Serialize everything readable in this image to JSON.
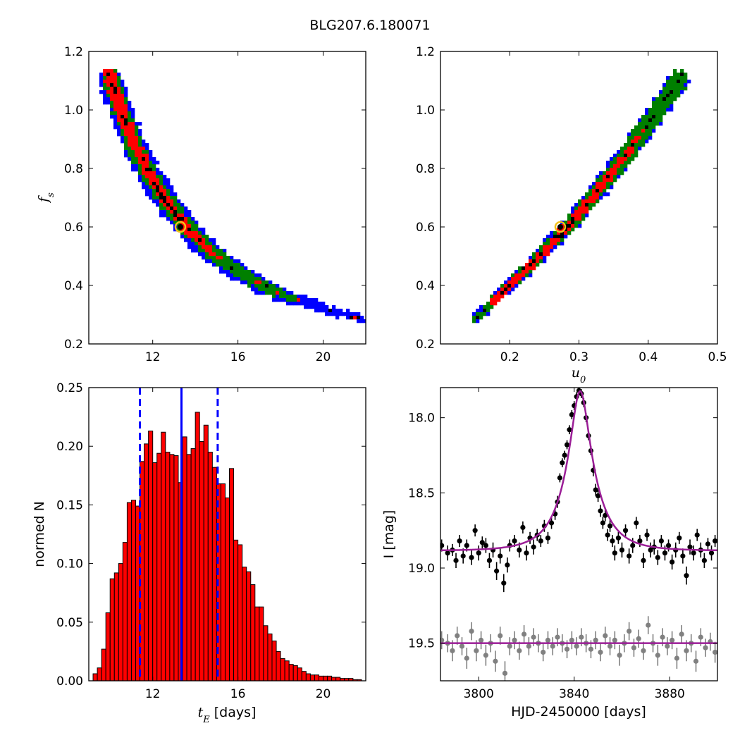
{
  "figure": {
    "title": "BLG207.6.180071",
    "colors": {
      "blue": "#0000ff",
      "green": "#007f00",
      "red": "#ff0000",
      "black": "#000000",
      "marker_edge": "#f2c11b",
      "model": "#9b1e97",
      "gray": "#808080"
    }
  },
  "chart_data": [
    {
      "id": "tE-fs",
      "type": "heatmap",
      "title": "",
      "xlabel": "",
      "ylabel": "f_s",
      "xlim": [
        9.0,
        22.0
      ],
      "ylim": [
        0.2,
        1.2
      ],
      "xticks": [
        12,
        16,
        20
      ],
      "yticks": [
        0.2,
        0.4,
        0.6,
        0.8,
        1.0,
        1.2
      ],
      "ytick_labels": [
        "0.2",
        "0.4",
        "0.6",
        "0.8",
        "1.0",
        "1.2"
      ],
      "levels": [
        "black",
        "red",
        "green",
        "blue"
      ],
      "ridge": [
        [
          9.9,
          1.13
        ],
        [
          10.5,
          1.0
        ],
        [
          11.2,
          0.87
        ],
        [
          12.0,
          0.76
        ],
        [
          13.0,
          0.65
        ],
        [
          14.0,
          0.565
        ],
        [
          15.0,
          0.5
        ],
        [
          16.0,
          0.445
        ],
        [
          17.0,
          0.405
        ],
        [
          18.0,
          0.37
        ],
        [
          19.0,
          0.345
        ],
        [
          20.0,
          0.32
        ],
        [
          21.0,
          0.3
        ],
        [
          21.9,
          0.285
        ]
      ],
      "ridge_half_width_fs": {
        "blue": [
          [
            9.9,
            0.045
          ],
          [
            16.0,
            0.04
          ],
          [
            20.0,
            0.022
          ],
          [
            21.9,
            0.012
          ]
        ],
        "green": [
          [
            9.9,
            0.035
          ],
          [
            16.0,
            0.03
          ],
          [
            19.0,
            0.018
          ],
          [
            20.0,
            0.012
          ]
        ],
        "red": [
          [
            10.2,
            0.025
          ],
          [
            15.0,
            0.02
          ],
          [
            16.8,
            0.014
          ]
        ],
        "black": [
          [
            12.6,
            0.008
          ],
          [
            14.6,
            0.008
          ]
        ]
      },
      "best_fit": {
        "tE": 13.3,
        "fs": 0.6
      }
    },
    {
      "id": "u0-fs",
      "type": "heatmap",
      "title": "",
      "xlabel": "u_0",
      "ylabel": "",
      "xlim": [
        0.1,
        0.5
      ],
      "ylim": [
        0.2,
        1.2
      ],
      "xticks": [
        0.2,
        0.3,
        0.4,
        0.5
      ],
      "xtick_labels": [
        "0.2",
        "0.3",
        "0.4",
        "0.5"
      ],
      "yticks": [
        0.2,
        0.4,
        0.6,
        0.8,
        1.0,
        1.2
      ],
      "ytick_labels": [
        "0.2",
        "0.4",
        "0.6",
        "0.8",
        "1.0",
        "1.2"
      ],
      "ridge": [
        [
          0.15,
          0.285
        ],
        [
          0.2,
          0.4
        ],
        [
          0.25,
          0.515
        ],
        [
          0.3,
          0.645
        ],
        [
          0.35,
          0.79
        ],
        [
          0.4,
          0.95
        ],
        [
          0.45,
          1.12
        ]
      ],
      "best_fit": {
        "u0": 0.273,
        "fs": 0.6
      }
    },
    {
      "id": "tE-hist",
      "type": "bar",
      "title": "",
      "xlabel": "t_E [days]",
      "ylabel": "normed N",
      "xlim": [
        9.0,
        22.0
      ],
      "ylim": [
        0.0,
        0.25
      ],
      "xticks": [
        12,
        16,
        20
      ],
      "yticks": [
        0.0,
        0.05,
        0.1,
        0.15,
        0.2,
        0.25
      ],
      "ytick_labels": [
        "0.00",
        "0.05",
        "0.10",
        "0.15",
        "0.20",
        "0.25"
      ],
      "bin_width": 0.2,
      "bin_start": 9.2,
      "values": [
        0.006,
        0.011,
        0.027,
        0.058,
        0.087,
        0.092,
        0.1,
        0.118,
        0.152,
        0.154,
        0.149,
        0.187,
        0.202,
        0.213,
        0.186,
        0.194,
        0.212,
        0.195,
        0.193,
        0.192,
        0.169,
        0.208,
        0.193,
        0.198,
        0.229,
        0.204,
        0.218,
        0.195,
        0.182,
        0.168,
        0.168,
        0.156,
        0.181,
        0.12,
        0.116,
        0.097,
        0.093,
        0.082,
        0.063,
        0.063,
        0.047,
        0.04,
        0.034,
        0.025,
        0.019,
        0.017,
        0.014,
        0.013,
        0.011,
        0.008,
        0.006,
        0.005,
        0.005,
        0.004,
        0.004,
        0.004,
        0.003,
        0.003,
        0.002,
        0.002,
        0.002,
        0.001,
        0.001
      ],
      "median": 13.35,
      "interval": [
        11.4,
        15.05
      ]
    },
    {
      "id": "lightcurve",
      "type": "scatter",
      "title": "",
      "xlabel": "HJD-2450000 [days]",
      "ylabel": "I [mag]",
      "xlim": [
        3784,
        3900
      ],
      "ylim": [
        19.75,
        17.8
      ],
      "xticks": [
        3800,
        3840,
        3880
      ],
      "yticks": [
        18.0,
        18.5,
        19.0,
        19.5
      ],
      "ytick_labels": [
        "18.0",
        "18.5",
        "19.0",
        "19.5"
      ],
      "model": {
        "t0": 3842.5,
        "u0": 0.273,
        "tE": 13.3,
        "fs": 0.6,
        "baseline": 18.885
      },
      "residual_baseline": 19.5,
      "data_points": [
        [
          3784.5,
          18.85,
          0.04
        ],
        [
          3787.0,
          18.9,
          0.05
        ],
        [
          3789.0,
          18.88,
          0.04
        ],
        [
          3790.5,
          18.95,
          0.05
        ],
        [
          3792.0,
          18.82,
          0.04
        ],
        [
          3793.5,
          18.92,
          0.05
        ],
        [
          3795.0,
          18.85,
          0.04
        ],
        [
          3797.0,
          18.93,
          0.05
        ],
        [
          3798.5,
          18.75,
          0.04
        ],
        [
          3800.0,
          18.9,
          0.05
        ],
        [
          3801.5,
          18.83,
          0.04
        ],
        [
          3803.0,
          18.85,
          0.05
        ],
        [
          3804.5,
          18.95,
          0.05
        ],
        [
          3806.0,
          18.88,
          0.05
        ],
        [
          3807.5,
          19.02,
          0.06
        ],
        [
          3809.0,
          18.92,
          0.05
        ],
        [
          3810.5,
          19.1,
          0.06
        ],
        [
          3812.0,
          18.98,
          0.05
        ],
        [
          3813.0,
          18.85,
          0.04
        ],
        [
          3815.0,
          18.82,
          0.04
        ],
        [
          3817.0,
          18.88,
          0.05
        ],
        [
          3818.5,
          18.73,
          0.04
        ],
        [
          3820.0,
          18.9,
          0.05
        ],
        [
          3821.5,
          18.8,
          0.04
        ],
        [
          3823.0,
          18.86,
          0.05
        ],
        [
          3824.5,
          18.78,
          0.04
        ],
        [
          3826.0,
          18.82,
          0.04
        ],
        [
          3827.5,
          18.72,
          0.04
        ],
        [
          3829.0,
          18.8,
          0.04
        ],
        [
          3830.5,
          18.7,
          0.04
        ],
        [
          3832.0,
          18.64,
          0.04
        ],
        [
          3833.0,
          18.56,
          0.04
        ],
        [
          3834.0,
          18.4,
          0.03
        ],
        [
          3835.0,
          18.3,
          0.03
        ],
        [
          3836.0,
          18.25,
          0.03
        ],
        [
          3837.0,
          18.18,
          0.03
        ],
        [
          3838.0,
          18.08,
          0.03
        ],
        [
          3839.0,
          17.98,
          0.03
        ],
        [
          3840.0,
          17.92,
          0.03
        ],
        [
          3841.0,
          17.86,
          0.03
        ],
        [
          3842.0,
          17.82,
          0.03
        ],
        [
          3843.0,
          17.84,
          0.03
        ],
        [
          3844.0,
          17.9,
          0.03
        ],
        [
          3845.0,
          18.0,
          0.03
        ],
        [
          3846.0,
          18.12,
          0.03
        ],
        [
          3847.0,
          18.22,
          0.03
        ],
        [
          3848.0,
          18.35,
          0.04
        ],
        [
          3849.0,
          18.48,
          0.04
        ],
        [
          3850.0,
          18.52,
          0.04
        ],
        [
          3851.0,
          18.62,
          0.04
        ],
        [
          3852.0,
          18.7,
          0.04
        ],
        [
          3853.0,
          18.65,
          0.04
        ],
        [
          3854.0,
          18.78,
          0.04
        ],
        [
          3855.0,
          18.72,
          0.04
        ],
        [
          3856.0,
          18.82,
          0.04
        ],
        [
          3857.0,
          18.9,
          0.05
        ],
        [
          3858.5,
          18.8,
          0.04
        ],
        [
          3860.0,
          18.88,
          0.05
        ],
        [
          3861.5,
          18.75,
          0.04
        ],
        [
          3863.0,
          18.92,
          0.05
        ],
        [
          3864.5,
          18.85,
          0.05
        ],
        [
          3866.0,
          18.7,
          0.04
        ],
        [
          3867.5,
          18.82,
          0.04
        ],
        [
          3869.0,
          18.95,
          0.05
        ],
        [
          3870.5,
          18.78,
          0.04
        ],
        [
          3872.0,
          18.88,
          0.05
        ],
        [
          3873.5,
          18.86,
          0.05
        ],
        [
          3875.0,
          18.93,
          0.05
        ],
        [
          3876.5,
          18.82,
          0.04
        ],
        [
          3878.0,
          18.9,
          0.05
        ],
        [
          3879.5,
          18.85,
          0.04
        ],
        [
          3881.0,
          18.96,
          0.05
        ],
        [
          3882.5,
          18.88,
          0.05
        ],
        [
          3884.0,
          18.8,
          0.04
        ],
        [
          3885.5,
          18.92,
          0.05
        ],
        [
          3887.0,
          19.05,
          0.06
        ],
        [
          3888.5,
          18.86,
          0.05
        ],
        [
          3890.0,
          18.9,
          0.05
        ],
        [
          3891.5,
          18.78,
          0.04
        ],
        [
          3893.0,
          18.88,
          0.05
        ],
        [
          3894.5,
          18.95,
          0.05
        ],
        [
          3896.0,
          18.84,
          0.04
        ],
        [
          3897.5,
          18.9,
          0.05
        ],
        [
          3899.0,
          18.82,
          0.04
        ]
      ],
      "residual_points": [
        [
          3784.5,
          19.48,
          0.06
        ],
        [
          3787.0,
          19.5,
          0.06
        ],
        [
          3789.0,
          19.55,
          0.07
        ],
        [
          3791.0,
          19.45,
          0.06
        ],
        [
          3793.0,
          19.52,
          0.06
        ],
        [
          3795.0,
          19.6,
          0.07
        ],
        [
          3797.0,
          19.42,
          0.06
        ],
        [
          3799.0,
          19.55,
          0.07
        ],
        [
          3801.0,
          19.48,
          0.06
        ],
        [
          3803.0,
          19.58,
          0.07
        ],
        [
          3805.0,
          19.5,
          0.06
        ],
        [
          3807.0,
          19.62,
          0.07
        ],
        [
          3809.0,
          19.45,
          0.06
        ],
        [
          3811.0,
          19.7,
          0.08
        ],
        [
          3813.0,
          19.52,
          0.06
        ],
        [
          3815.0,
          19.48,
          0.06
        ],
        [
          3817.0,
          19.55,
          0.06
        ],
        [
          3819.0,
          19.44,
          0.06
        ],
        [
          3821.0,
          19.52,
          0.06
        ],
        [
          3823.0,
          19.46,
          0.06
        ],
        [
          3825.0,
          19.5,
          0.06
        ],
        [
          3827.0,
          19.56,
          0.06
        ],
        [
          3829.0,
          19.48,
          0.06
        ],
        [
          3831.0,
          19.52,
          0.06
        ],
        [
          3833.0,
          19.46,
          0.06
        ],
        [
          3835.0,
          19.5,
          0.06
        ],
        [
          3837.0,
          19.54,
          0.06
        ],
        [
          3839.0,
          19.48,
          0.06
        ],
        [
          3841.0,
          19.52,
          0.06
        ],
        [
          3843.0,
          19.46,
          0.06
        ],
        [
          3845.0,
          19.5,
          0.06
        ],
        [
          3847.0,
          19.54,
          0.06
        ],
        [
          3849.0,
          19.48,
          0.06
        ],
        [
          3851.0,
          19.56,
          0.06
        ],
        [
          3853.0,
          19.45,
          0.06
        ],
        [
          3855.0,
          19.52,
          0.06
        ],
        [
          3857.0,
          19.48,
          0.06
        ],
        [
          3859.0,
          19.58,
          0.07
        ],
        [
          3861.0,
          19.5,
          0.06
        ],
        [
          3863.0,
          19.42,
          0.06
        ],
        [
          3865.0,
          19.53,
          0.06
        ],
        [
          3867.0,
          19.47,
          0.06
        ],
        [
          3869.0,
          19.55,
          0.06
        ],
        [
          3871.0,
          19.38,
          0.06
        ],
        [
          3873.0,
          19.5,
          0.06
        ],
        [
          3875.0,
          19.58,
          0.07
        ],
        [
          3877.0,
          19.46,
          0.06
        ],
        [
          3879.0,
          19.52,
          0.06
        ],
        [
          3881.0,
          19.48,
          0.06
        ],
        [
          3883.0,
          19.6,
          0.07
        ],
        [
          3885.0,
          19.44,
          0.06
        ],
        [
          3887.0,
          19.55,
          0.07
        ],
        [
          3889.0,
          19.5,
          0.06
        ],
        [
          3891.0,
          19.62,
          0.07
        ],
        [
          3893.0,
          19.46,
          0.06
        ],
        [
          3895.0,
          19.53,
          0.06
        ],
        [
          3897.0,
          19.49,
          0.06
        ],
        [
          3899.0,
          19.56,
          0.07
        ]
      ]
    }
  ]
}
